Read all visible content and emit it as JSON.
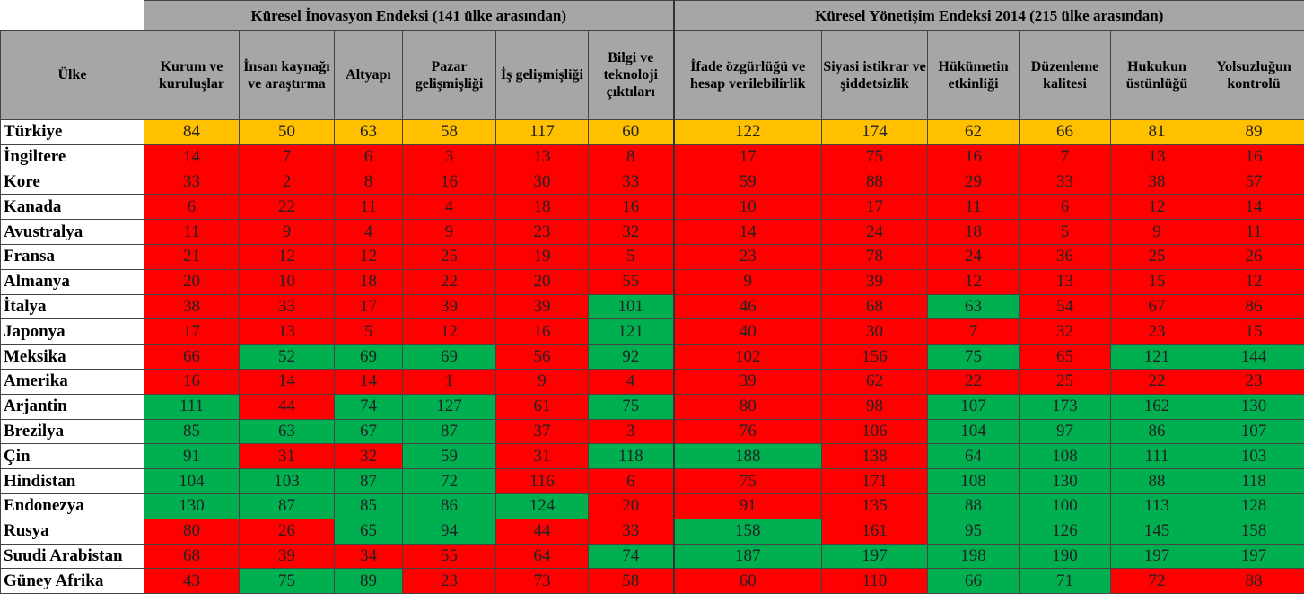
{
  "table": {
    "corner_label": "Ülke",
    "groups": [
      {
        "title": "Küresel İnovasyon Endeksi (141 ülke arasından)",
        "columns": [
          "Kurum ve kuruluşlar",
          "İnsan kaynağı ve araştırma",
          "Altyapı",
          "Pazar gelişmişliği",
          "İş gelişmişliği",
          "Bilgi ve teknoloji çıktıları"
        ]
      },
      {
        "title": "Küresel Yönetişim Endeksi 2014 (215 ülke arasından)",
        "columns": [
          "İfade özgürlüğü ve hesap verilebilirlik",
          "Siyasi istikrar ve şiddetsizlik",
          "Hükümetin etkinliği",
          "Düzenleme kalitesi",
          "Hukukun üstünlüğü",
          "Yolsuzluğun kontrolü"
        ]
      }
    ],
    "rows": [
      {
        "country": "Türkiye",
        "values": [
          84,
          50,
          63,
          58,
          117,
          60,
          122,
          174,
          62,
          66,
          81,
          89
        ]
      },
      {
        "country": "İngiltere",
        "values": [
          14,
          7,
          6,
          3,
          13,
          8,
          17,
          75,
          16,
          7,
          13,
          16
        ]
      },
      {
        "country": "Kore",
        "values": [
          33,
          2,
          8,
          16,
          30,
          33,
          59,
          88,
          29,
          33,
          38,
          57
        ]
      },
      {
        "country": "Kanada",
        "values": [
          6,
          22,
          11,
          4,
          18,
          16,
          10,
          17,
          11,
          6,
          12,
          14
        ]
      },
      {
        "country": "Avustralya",
        "values": [
          11,
          9,
          4,
          9,
          23,
          32,
          14,
          24,
          18,
          5,
          9,
          11
        ]
      },
      {
        "country": "Fransa",
        "values": [
          21,
          12,
          12,
          25,
          19,
          5,
          23,
          78,
          24,
          36,
          25,
          26
        ]
      },
      {
        "country": "Almanya",
        "values": [
          20,
          10,
          18,
          22,
          20,
          55,
          9,
          39,
          12,
          13,
          15,
          12
        ]
      },
      {
        "country": "İtalya",
        "values": [
          38,
          33,
          17,
          39,
          39,
          101,
          46,
          68,
          63,
          54,
          67,
          86
        ]
      },
      {
        "country": "Japonya",
        "values": [
          17,
          13,
          5,
          12,
          16,
          121,
          40,
          30,
          7,
          32,
          23,
          15
        ]
      },
      {
        "country": "Meksika",
        "values": [
          66,
          52,
          69,
          69,
          56,
          92,
          102,
          156,
          75,
          65,
          121,
          144
        ]
      },
      {
        "country": "Amerika",
        "values": [
          16,
          14,
          14,
          1,
          9,
          4,
          39,
          62,
          22,
          25,
          22,
          23
        ]
      },
      {
        "country": "Arjantin",
        "values": [
          111,
          44,
          74,
          127,
          61,
          75,
          80,
          98,
          107,
          173,
          162,
          130
        ]
      },
      {
        "country": "Brezilya",
        "values": [
          85,
          63,
          67,
          87,
          37,
          3,
          76,
          106,
          104,
          97,
          86,
          107
        ]
      },
      {
        "country": "Çin",
        "values": [
          91,
          31,
          32,
          59,
          31,
          118,
          188,
          138,
          64,
          108,
          111,
          103
        ]
      },
      {
        "country": "Hindistan",
        "values": [
          104,
          103,
          87,
          72,
          116,
          6,
          75,
          171,
          108,
          130,
          88,
          118
        ]
      },
      {
        "country": "Endonezya",
        "values": [
          130,
          87,
          85,
          86,
          124,
          20,
          91,
          135,
          88,
          100,
          113,
          128
        ]
      },
      {
        "country": "Rusya",
        "values": [
          80,
          26,
          65,
          94,
          44,
          33,
          158,
          161,
          95,
          126,
          145,
          158
        ]
      },
      {
        "country": "Suudi Arabistan",
        "values": [
          68,
          39,
          34,
          55,
          64,
          74,
          187,
          197,
          198,
          190,
          197,
          197
        ]
      },
      {
        "country": "Güney Afrika",
        "values": [
          43,
          75,
          89,
          23,
          73,
          58,
          60,
          110,
          66,
          71,
          72,
          88
        ]
      }
    ],
    "reference_row": 0,
    "colors": {
      "reference": "#ffc000",
      "lower": "#ff0000",
      "higher": "#00b050",
      "header": "#a6a6a6"
    }
  }
}
